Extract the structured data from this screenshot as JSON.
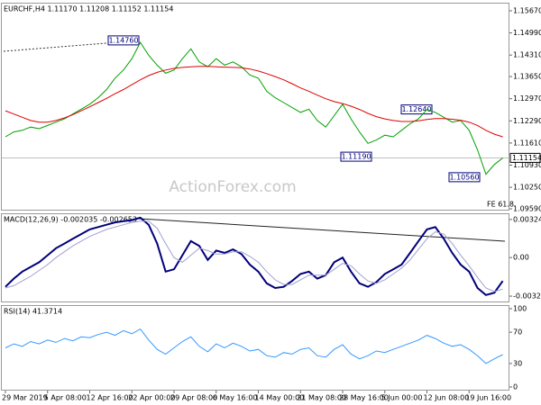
{
  "chart_data": [
    {
      "type": "line",
      "title": "EURCHF,H4  1.11170 1.11208 1.11152 1.11154",
      "watermark": "ActionForex.com",
      "ylim": [
        1.0959,
        1.1589
      ],
      "yticks": [
        {
          "value": 1.1567,
          "label": "1.15670"
        },
        {
          "value": 1.1499,
          "label": "1.14990"
        },
        {
          "value": 1.1431,
          "label": "1.14310"
        },
        {
          "value": 1.1365,
          "label": "1.13650"
        },
        {
          "value": 1.1297,
          "label": "1.12970"
        },
        {
          "value": 1.1229,
          "label": "1.12290"
        },
        {
          "value": 1.1161,
          "label": "1.11610"
        },
        {
          "value": 1.1093,
          "label": "1.10930"
        },
        {
          "value": 1.1025,
          "label": "1.10250"
        },
        {
          "value": 1.0959,
          "label": "1.09590"
        }
      ],
      "current_price": 1.11154,
      "annotations": [
        {
          "value": 1.1476,
          "label": "1.14760"
        },
        {
          "value": 1.1119,
          "label": "1.11190"
        },
        {
          "value": 1.1264,
          "label": "1.12640"
        },
        {
          "value": 1.1056,
          "label": "1.10560"
        }
      ],
      "note": "FE 61.8",
      "series": [
        {
          "color": "#00a000",
          "values": [
            1.118,
            1.1195,
            1.12,
            1.121,
            1.1205,
            1.1215,
            1.1225,
            1.1235,
            1.125,
            1.1265,
            1.128,
            1.13,
            1.1325,
            1.136,
            1.1385,
            1.142,
            1.147,
            1.143,
            1.14,
            1.1375,
            1.1385,
            1.142,
            1.145,
            1.141,
            1.1395,
            1.142,
            1.14,
            1.141,
            1.1395,
            1.137,
            1.136,
            1.132,
            1.13,
            1.1285,
            1.127,
            1.1255,
            1.1265,
            1.123,
            1.121,
            1.1245,
            1.128,
            1.1235,
            1.1195,
            1.116,
            1.117,
            1.1185,
            1.118,
            1.12,
            1.122,
            1.1235,
            1.1264,
            1.1255,
            1.124,
            1.1225,
            1.123,
            1.12,
            1.114,
            1.1065,
            1.1095,
            1.1115
          ]
        },
        {
          "color": "#e00000",
          "values": [
            1.126,
            1.125,
            1.124,
            1.123,
            1.1225,
            1.1225,
            1.123,
            1.1238,
            1.1248,
            1.126,
            1.1272,
            1.1285,
            1.1298,
            1.1312,
            1.1325,
            1.134,
            1.1355,
            1.1368,
            1.1378,
            1.1385,
            1.139,
            1.1393,
            1.1395,
            1.1396,
            1.1396,
            1.1395,
            1.1394,
            1.1393,
            1.1392,
            1.1388,
            1.1382,
            1.1374,
            1.1365,
            1.1355,
            1.1343,
            1.133,
            1.132,
            1.1308,
            1.1297,
            1.1288,
            1.1282,
            1.1274,
            1.1264,
            1.1252,
            1.1242,
            1.1235,
            1.123,
            1.1227,
            1.1227,
            1.1229,
            1.1233,
            1.1236,
            1.1236,
            1.1234,
            1.1231,
            1.1225,
            1.1215,
            1.12,
            1.1188,
            1.118
          ]
        }
      ]
    },
    {
      "type": "line",
      "title": "MACD(12,26,9) -0.002035 -0.002653",
      "ylim": [
        -0.00375,
        0.0037
      ],
      "yticks": [
        0.003249,
        {
          "value": 0,
          "label": "0.00"
        },
        -0.003293
      ],
      "series": [
        {
          "color": "#00007a",
          "values": [
            -0.0025,
            -0.0018,
            -0.0012,
            -0.0008,
            -0.0004,
            0.0002,
            0.0008,
            0.0012,
            0.0016,
            0.002,
            0.0024,
            0.0026,
            0.0028,
            0.003,
            0.0031,
            0.0032,
            0.0034,
            0.0028,
            0.0012,
            -0.0012,
            -0.001,
            0.0002,
            0.0014,
            0.001,
            -0.0002,
            0.0006,
            0.0004,
            0.0007,
            0.0003,
            -0.0006,
            -0.0012,
            -0.0022,
            -0.0026,
            -0.0025,
            -0.002,
            -0.0014,
            -0.0012,
            -0.0018,
            -0.0015,
            -0.0004,
            0.0,
            -0.0012,
            -0.0022,
            -0.0025,
            -0.0021,
            -0.0014,
            -0.001,
            -0.0006,
            0.0004,
            0.0014,
            0.0024,
            0.0026,
            0.0016,
            0.0004,
            -0.0006,
            -0.0012,
            -0.0026,
            -0.0032,
            -0.003,
            -0.002
          ]
        },
        {
          "color": "#a0a0d0",
          "values": [
            -0.0026,
            -0.0024,
            -0.002,
            -0.0016,
            -0.0011,
            -0.0006,
            0.0,
            0.0005,
            0.001,
            0.0014,
            0.0018,
            0.0021,
            0.0024,
            0.0026,
            0.0028,
            0.003,
            0.0031,
            0.0031,
            0.0025,
            0.0012,
            0.0,
            -0.0004,
            0.0002,
            0.0008,
            0.0006,
            0.0003,
            0.0003,
            0.0005,
            0.0005,
            0.0001,
            -0.0004,
            -0.0012,
            -0.0019,
            -0.0023,
            -0.0023,
            -0.0019,
            -0.0015,
            -0.0015,
            -0.0015,
            -0.001,
            -0.0005,
            -0.0007,
            -0.0014,
            -0.002,
            -0.0022,
            -0.0019,
            -0.0014,
            -0.0009,
            -0.0002,
            0.0007,
            0.0016,
            0.0022,
            0.002,
            0.0012,
            0.0002,
            -0.0007,
            -0.0017,
            -0.0026,
            -0.0029,
            -0.0027
          ]
        }
      ]
    },
    {
      "type": "line",
      "title": "RSI(14) 41.3714",
      "ylim": [
        0,
        100
      ],
      "yticks": [
        100,
        70,
        30,
        0
      ],
      "categories": [
        "29 Mar 2019",
        null,
        null,
        null,
        null,
        "5 Apr 08:00",
        null,
        null,
        null,
        null,
        "12 Apr 16:00",
        null,
        null,
        null,
        null,
        "22 Apr 00:00",
        null,
        null,
        null,
        null,
        "29 Apr 08:00",
        null,
        null,
        null,
        null,
        "6 May 16:00",
        null,
        null,
        null,
        null,
        "14 May 00:00",
        null,
        null,
        null,
        null,
        "21 May 08:00",
        null,
        null,
        null,
        null,
        "28 May 16:00",
        null,
        null,
        null,
        null,
        "5 Jun 00:00",
        null,
        null,
        null,
        null,
        "12 Jun 08:00",
        null,
        null,
        null,
        null,
        "19 Jun 16:00",
        null,
        null,
        null,
        null
      ],
      "series": [
        {
          "color": "#3399ff",
          "values": [
            50,
            55,
            52,
            58,
            55,
            60,
            57,
            62,
            59,
            64,
            63,
            67,
            70,
            66,
            72,
            68,
            74,
            60,
            48,
            42,
            50,
            58,
            64,
            52,
            45,
            55,
            50,
            56,
            52,
            46,
            48,
            40,
            38,
            44,
            42,
            48,
            50,
            40,
            38,
            48,
            54,
            42,
            36,
            40,
            46,
            44,
            48,
            52,
            56,
            60,
            66,
            62,
            56,
            52,
            54,
            48,
            40,
            30,
            36,
            41.3714
          ]
        }
      ]
    }
  ]
}
